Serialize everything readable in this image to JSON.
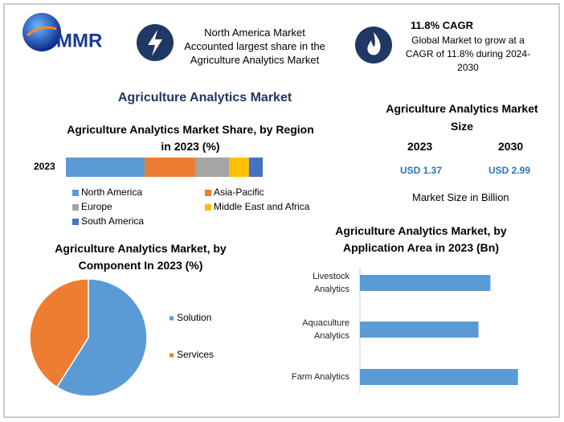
{
  "header": {
    "logo": "MMR",
    "share_text": "North America Market Accounted largest share in the Agriculture Analytics Market",
    "cagr_title": "11.8% CAGR",
    "cagr_text": "Global Market to grow at a CAGR of 11.8% during 2024-2030"
  },
  "title": "Agriculture Analytics Market",
  "market_size": {
    "title": "Agriculture Analytics Market Size",
    "years": [
      "2023",
      "2030"
    ],
    "values": [
      "USD 1.37",
      "USD 2.99"
    ],
    "note": "Market Size in Billion"
  },
  "chart_data": [
    {
      "type": "stacked-bar",
      "title": "Agriculture Analytics Market Share, by Region in 2023 (%)",
      "categories": [
        "2023"
      ],
      "xlim": [
        0,
        100
      ],
      "series": [
        {
          "name": "North America",
          "color": "#5b9bd5",
          "values": [
            40
          ]
        },
        {
          "name": "Asia-Pacific",
          "color": "#ed7d31",
          "values": [
            26
          ]
        },
        {
          "name": "Europe",
          "color": "#a5a5a5",
          "values": [
            17
          ]
        },
        {
          "name": "Middle East and Africa",
          "color": "#ffc000",
          "values": [
            10
          ]
        },
        {
          "name": "South America",
          "color": "#4472c4",
          "values": [
            7
          ]
        }
      ]
    },
    {
      "type": "pie",
      "title": "Agriculture Analytics Market, by Component In 2023 (%)",
      "categories": [
        "Solution",
        "Services"
      ],
      "values": [
        59,
        41
      ],
      "colors": [
        "#5b9bd5",
        "#ed7d31"
      ]
    },
    {
      "type": "hbar",
      "title": "Agriculture Analytics Market, by Application Area in 2023 (Bn)",
      "categories": [
        "Livestock Analytics",
        "Aquaculture Analytics",
        "Farm Analytics"
      ],
      "values": [
        0.33,
        0.3,
        0.4
      ],
      "color": "#5b9bd5",
      "xlim": [
        0,
        0.5
      ]
    }
  ]
}
